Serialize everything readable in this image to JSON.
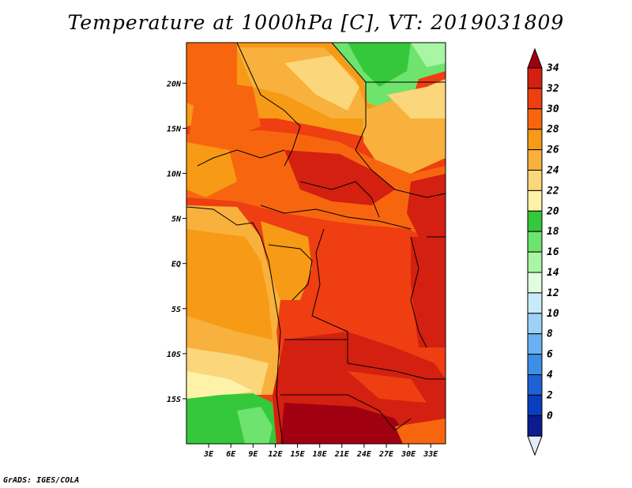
{
  "title": "Temperature at 1000hPa [C], VT: 2019031809",
  "footer": "GrADS: IGES/COLA",
  "map": {
    "lon_range": [
      0,
      35
    ],
    "lat_range": [
      -20,
      24.5
    ],
    "lat_ticks": [
      "20N",
      "15N",
      "10N",
      "5N",
      "EQ",
      "5S",
      "10S",
      "15S"
    ],
    "lon_ticks": [
      "3E",
      "6E",
      "9E",
      "12E",
      "15E",
      "18E",
      "21E",
      "24E",
      "27E",
      "30E",
      "33E"
    ]
  },
  "colorbar": {
    "labels": [
      "34",
      "32",
      "30",
      "28",
      "26",
      "24",
      "22",
      "20",
      "18",
      "16",
      "14",
      "12",
      "10",
      "8",
      "6",
      "4",
      "2",
      "0"
    ],
    "colors": [
      "#a0000f",
      "#d32010",
      "#ee3e12",
      "#f7660f",
      "#f79a15",
      "#f7b13c",
      "#fbd67a",
      "#fef2a8",
      "#35c83a",
      "#6ee36e",
      "#a8f5a3",
      "#e0fde0",
      "#c8ebfb",
      "#9dd2f8",
      "#6ab1f2",
      "#3d8ee6",
      "#1c62d4",
      "#0a3ec0",
      "#0a1c90",
      "#e8e8ff"
    ]
  }
}
